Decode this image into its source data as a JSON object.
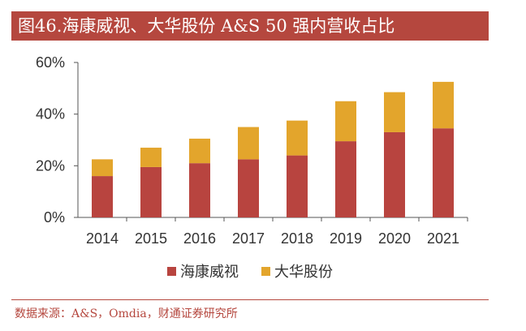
{
  "title": "图46.海康威视、大华股份 A&S 50 强内营收占比",
  "source": "数据来源：A&S，Omdia，财通证券研究所",
  "colors": {
    "accent": "#b5473e",
    "series_1": "#b8443f",
    "series_2": "#e3a52c",
    "axis": "#555555"
  },
  "chart_data": {
    "type": "bar",
    "stacked": true,
    "categories": [
      "2014",
      "2015",
      "2016",
      "2017",
      "2018",
      "2019",
      "2020",
      "2021"
    ],
    "series": [
      {
        "name": "海康威视",
        "values": [
          16,
          19.5,
          21,
          22.5,
          24,
          29.5,
          33,
          34.5
        ]
      },
      {
        "name": "大华股份",
        "values": [
          6.5,
          7.5,
          9.5,
          12.5,
          13.5,
          15.5,
          15.5,
          18
        ]
      }
    ],
    "ylim": [
      0,
      60
    ],
    "yticks": [
      0,
      20,
      40,
      60
    ],
    "ytick_labels": [
      "0%",
      "20%",
      "40%",
      "60%"
    ],
    "xlabel": "",
    "ylabel": "",
    "legend": "bottom-center"
  }
}
